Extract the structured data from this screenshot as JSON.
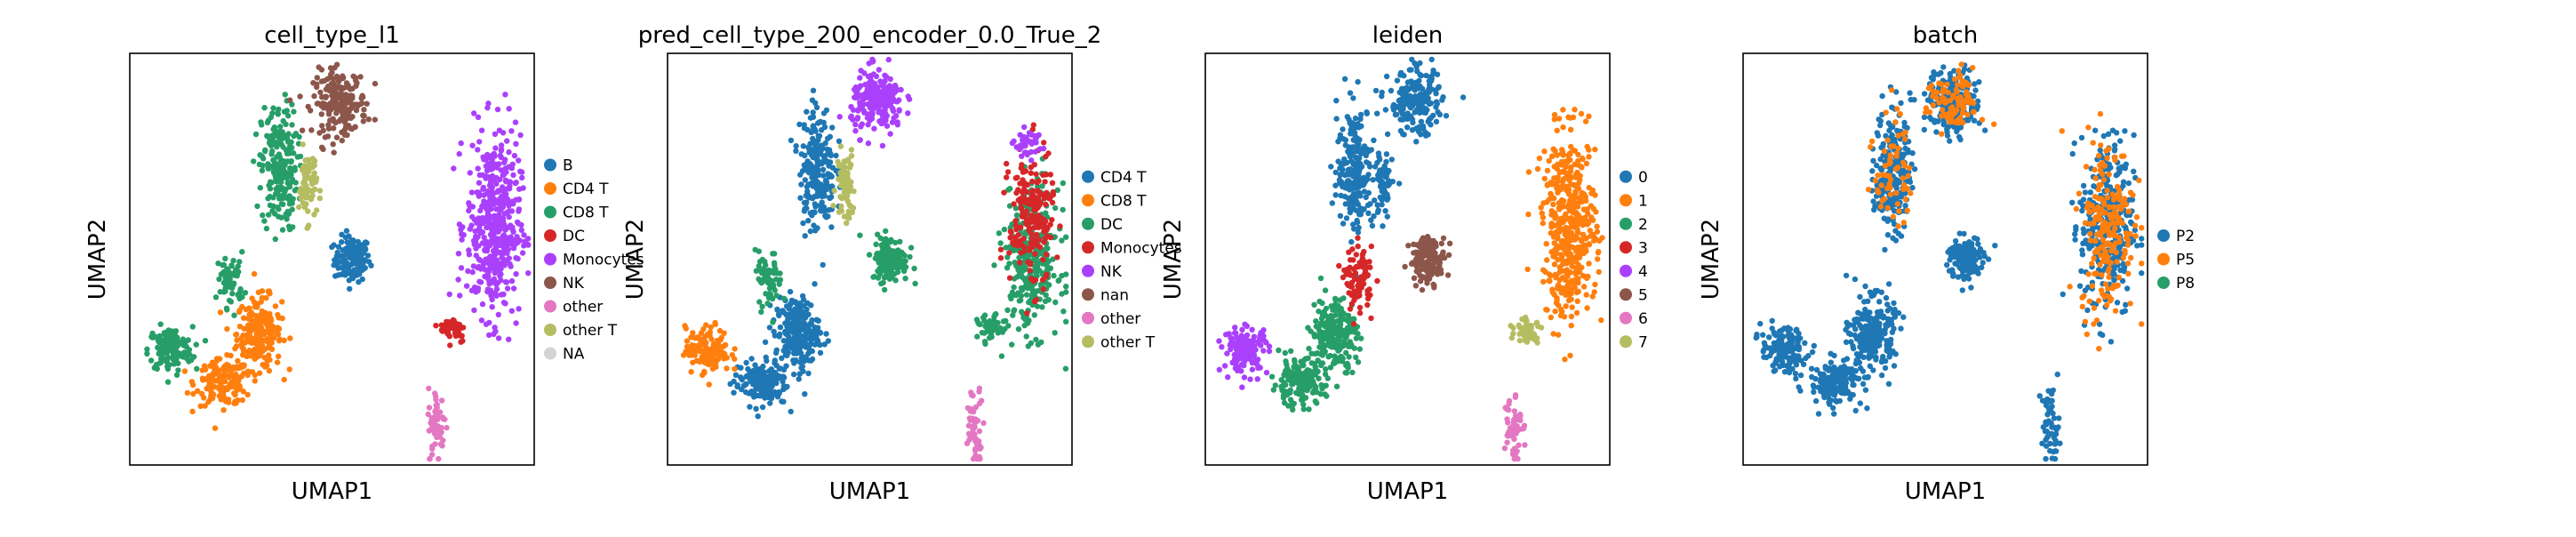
{
  "chart_data": [
    {
      "type": "scatter",
      "title": "cell_type_l1",
      "xlabel": "UMAP1",
      "ylabel": "UMAP2",
      "legend": [
        {
          "label": "B",
          "color": "#1f77b4"
        },
        {
          "label": "CD4 T",
          "color": "#ff7f0e"
        },
        {
          "label": "CD8 T",
          "color": "#279e68"
        },
        {
          "label": "DC",
          "color": "#d62728"
        },
        {
          "label": "Monocytes",
          "color": "#aa40fc"
        },
        {
          "label": "NK",
          "color": "#8c564b"
        },
        {
          "label": "other",
          "color": "#e377c2"
        },
        {
          "label": "other T",
          "color": "#b5bd61"
        },
        {
          "label": "NA",
          "color": "#d3d3d3"
        }
      ],
      "legend_position": "right",
      "clusters": [
        {
          "label": "B",
          "cx": 0.55,
          "cy": 0.5,
          "rx": 0.04,
          "ry": 0.05,
          "n": 140
        },
        {
          "label": "CD4 T",
          "cx": 0.32,
          "cy": 0.32,
          "rx": 0.05,
          "ry": 0.08,
          "n": 230
        },
        {
          "label": "CD4 T",
          "cx": 0.23,
          "cy": 0.2,
          "rx": 0.06,
          "ry": 0.05,
          "n": 160
        },
        {
          "label": "CD8 T",
          "cx": 0.1,
          "cy": 0.28,
          "rx": 0.05,
          "ry": 0.05,
          "n": 140
        },
        {
          "label": "CD8 T",
          "cx": 0.37,
          "cy": 0.72,
          "rx": 0.04,
          "ry": 0.14,
          "n": 220
        },
        {
          "label": "CD8 T",
          "cx": 0.25,
          "cy": 0.45,
          "rx": 0.03,
          "ry": 0.06,
          "n": 60
        },
        {
          "label": "NK",
          "cx": 0.52,
          "cy": 0.88,
          "rx": 0.06,
          "ry": 0.07,
          "n": 200
        },
        {
          "label": "other T",
          "cx": 0.44,
          "cy": 0.68,
          "rx": 0.02,
          "ry": 0.08,
          "n": 70
        },
        {
          "label": "Monocytes",
          "cx": 0.9,
          "cy": 0.58,
          "rx": 0.06,
          "ry": 0.2,
          "n": 460
        },
        {
          "label": "DC",
          "cx": 0.8,
          "cy": 0.33,
          "rx": 0.03,
          "ry": 0.03,
          "n": 45
        },
        {
          "label": "other",
          "cx": 0.76,
          "cy": 0.1,
          "rx": 0.02,
          "ry": 0.08,
          "n": 55
        }
      ]
    },
    {
      "type": "scatter",
      "title": "pred_cell_type_200_encoder_0.0_True_2",
      "xlabel": "UMAP1",
      "ylabel": "UMAP2",
      "legend": [
        {
          "label": "CD4 T",
          "color": "#1f77b4"
        },
        {
          "label": "CD8 T",
          "color": "#ff7f0e"
        },
        {
          "label": "DC",
          "color": "#279e68"
        },
        {
          "label": "Monocytes",
          "color": "#d62728"
        },
        {
          "label": "NK",
          "color": "#aa40fc"
        },
        {
          "label": "nan",
          "color": "#8c564b"
        },
        {
          "label": "other",
          "color": "#e377c2"
        },
        {
          "label": "other T",
          "color": "#b5bd61"
        }
      ],
      "legend_position": "right",
      "clusters": [
        {
          "label": "DC",
          "cx": 0.55,
          "cy": 0.5,
          "rx": 0.04,
          "ry": 0.05,
          "n": 140
        },
        {
          "label": "CD4 T",
          "cx": 0.32,
          "cy": 0.32,
          "rx": 0.05,
          "ry": 0.08,
          "n": 230
        },
        {
          "label": "CD4 T",
          "cx": 0.23,
          "cy": 0.2,
          "rx": 0.06,
          "ry": 0.05,
          "n": 160
        },
        {
          "label": "CD8 T",
          "cx": 0.1,
          "cy": 0.28,
          "rx": 0.05,
          "ry": 0.05,
          "n": 140
        },
        {
          "label": "CD4 T",
          "cx": 0.37,
          "cy": 0.72,
          "rx": 0.04,
          "ry": 0.14,
          "n": 220
        },
        {
          "label": "DC",
          "cx": 0.25,
          "cy": 0.45,
          "rx": 0.03,
          "ry": 0.06,
          "n": 60
        },
        {
          "label": "NK",
          "cx": 0.52,
          "cy": 0.88,
          "rx": 0.06,
          "ry": 0.07,
          "n": 200
        },
        {
          "label": "other T",
          "cx": 0.44,
          "cy": 0.68,
          "rx": 0.02,
          "ry": 0.08,
          "n": 70
        },
        {
          "label": "DC",
          "cx": 0.9,
          "cy": 0.5,
          "rx": 0.06,
          "ry": 0.16,
          "n": 320
        },
        {
          "label": "Monocytes",
          "cx": 0.9,
          "cy": 0.6,
          "rx": 0.05,
          "ry": 0.15,
          "n": 200
        },
        {
          "label": "NK",
          "cx": 0.89,
          "cy": 0.78,
          "rx": 0.03,
          "ry": 0.03,
          "n": 40
        },
        {
          "label": "DC",
          "cx": 0.8,
          "cy": 0.33,
          "rx": 0.03,
          "ry": 0.03,
          "n": 45
        },
        {
          "label": "other",
          "cx": 0.76,
          "cy": 0.1,
          "rx": 0.02,
          "ry": 0.08,
          "n": 55
        }
      ]
    },
    {
      "type": "scatter",
      "title": "leiden",
      "xlabel": "UMAP1",
      "ylabel": "UMAP2",
      "legend": [
        {
          "label": "0",
          "color": "#1f77b4"
        },
        {
          "label": "1",
          "color": "#ff7f0e"
        },
        {
          "label": "2",
          "color": "#279e68"
        },
        {
          "label": "3",
          "color": "#d62728"
        },
        {
          "label": "4",
          "color": "#aa40fc"
        },
        {
          "label": "5",
          "color": "#8c564b"
        },
        {
          "label": "6",
          "color": "#e377c2"
        },
        {
          "label": "7",
          "color": "#b5bd61"
        }
      ],
      "legend_position": "right",
      "clusters": [
        {
          "label": "5",
          "cx": 0.55,
          "cy": 0.5,
          "rx": 0.04,
          "ry": 0.05,
          "n": 140
        },
        {
          "label": "2",
          "cx": 0.32,
          "cy": 0.32,
          "rx": 0.05,
          "ry": 0.08,
          "n": 230
        },
        {
          "label": "2",
          "cx": 0.23,
          "cy": 0.2,
          "rx": 0.06,
          "ry": 0.05,
          "n": 160
        },
        {
          "label": "4",
          "cx": 0.1,
          "cy": 0.28,
          "rx": 0.05,
          "ry": 0.05,
          "n": 140
        },
        {
          "label": "0",
          "cx": 0.37,
          "cy": 0.72,
          "rx": 0.04,
          "ry": 0.14,
          "n": 220
        },
        {
          "label": "3",
          "cx": 0.38,
          "cy": 0.45,
          "rx": 0.03,
          "ry": 0.07,
          "n": 90
        },
        {
          "label": "0",
          "cx": 0.52,
          "cy": 0.88,
          "rx": 0.06,
          "ry": 0.07,
          "n": 200
        },
        {
          "label": "0",
          "cx": 0.44,
          "cy": 0.68,
          "rx": 0.02,
          "ry": 0.08,
          "n": 70
        },
        {
          "label": "1",
          "cx": 0.9,
          "cy": 0.58,
          "rx": 0.06,
          "ry": 0.2,
          "n": 460
        },
        {
          "label": "7",
          "cx": 0.8,
          "cy": 0.33,
          "rx": 0.03,
          "ry": 0.03,
          "n": 45
        },
        {
          "label": "6",
          "cx": 0.76,
          "cy": 0.1,
          "rx": 0.02,
          "ry": 0.08,
          "n": 55
        }
      ]
    },
    {
      "type": "scatter",
      "title": "batch",
      "xlabel": "UMAP1",
      "ylabel": "UMAP2",
      "legend": [
        {
          "label": "P2",
          "color": "#1f77b4"
        },
        {
          "label": "P5",
          "color": "#ff7f0e"
        },
        {
          "label": "P8",
          "color": "#279e68"
        }
      ],
      "legend_position": "right",
      "clusters": [
        {
          "label": "P2",
          "cx": 0.55,
          "cy": 0.5,
          "rx": 0.04,
          "ry": 0.05,
          "n": 140
        },
        {
          "label": "P2",
          "cx": 0.32,
          "cy": 0.32,
          "rx": 0.05,
          "ry": 0.08,
          "n": 230
        },
        {
          "label": "P2",
          "cx": 0.23,
          "cy": 0.2,
          "rx": 0.06,
          "ry": 0.05,
          "n": 160
        },
        {
          "label": "P2",
          "cx": 0.1,
          "cy": 0.28,
          "rx": 0.05,
          "ry": 0.05,
          "n": 140
        },
        {
          "label": "P2",
          "cx": 0.37,
          "cy": 0.72,
          "rx": 0.04,
          "ry": 0.14,
          "n": 220
        },
        {
          "label": "P5",
          "cx": 0.37,
          "cy": 0.72,
          "rx": 0.04,
          "ry": 0.14,
          "n": 60
        },
        {
          "label": "P2",
          "cx": 0.52,
          "cy": 0.88,
          "rx": 0.06,
          "ry": 0.07,
          "n": 200
        },
        {
          "label": "P5",
          "cx": 0.52,
          "cy": 0.88,
          "rx": 0.06,
          "ry": 0.07,
          "n": 90
        },
        {
          "label": "P2",
          "cx": 0.9,
          "cy": 0.58,
          "rx": 0.06,
          "ry": 0.2,
          "n": 300
        },
        {
          "label": "P5",
          "cx": 0.9,
          "cy": 0.58,
          "rx": 0.06,
          "ry": 0.2,
          "n": 200
        },
        {
          "label": "P2",
          "cx": 0.76,
          "cy": 0.1,
          "rx": 0.02,
          "ry": 0.08,
          "n": 55
        }
      ]
    }
  ]
}
